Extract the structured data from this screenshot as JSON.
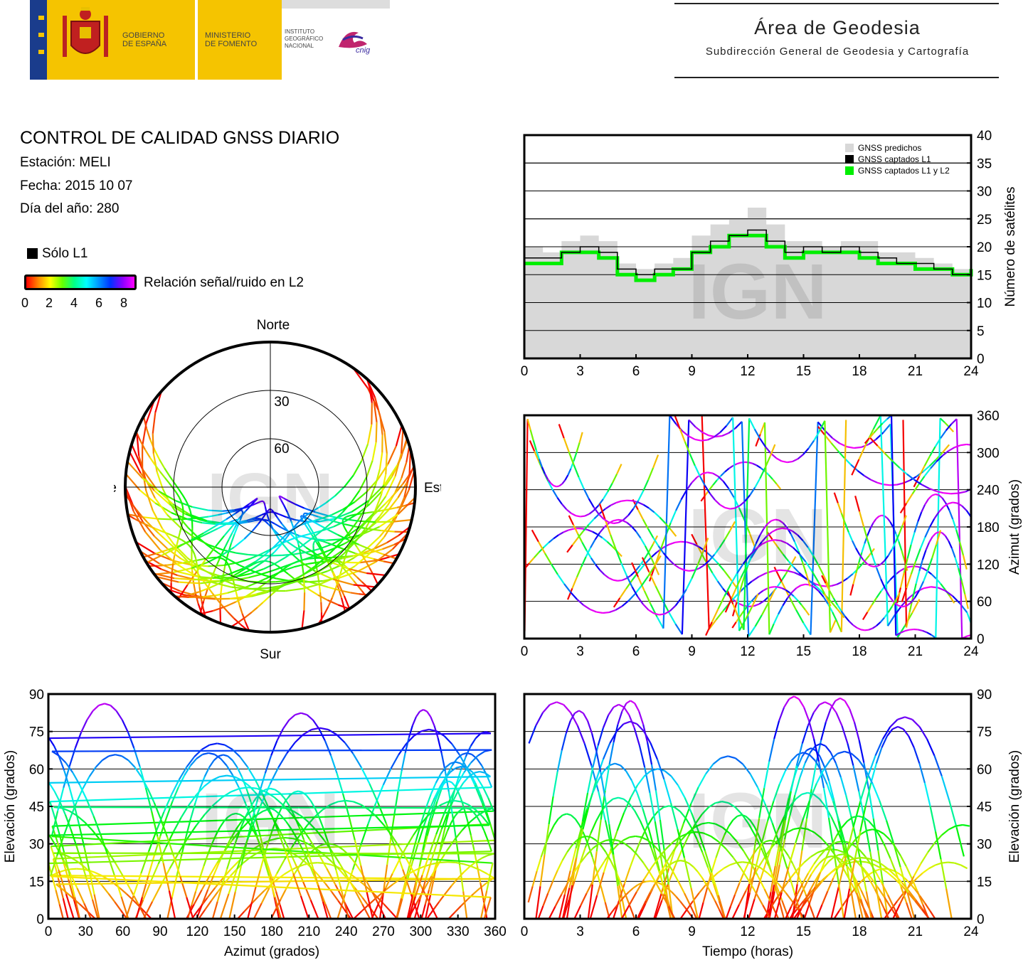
{
  "header": {
    "gov_line1": "GOBIERNO",
    "gov_line2": "DE ESPAÑA",
    "min_line1": "MINISTERIO",
    "min_line2": "DE FOMENTO",
    "ign_line1": "INSTITUTO",
    "ign_line2": "GEOGRÁFICO",
    "ign_line3": "NACIONAL",
    "cnig": "cnig",
    "area_title": "Área de Geodesia",
    "area_subtitle": "Subdirección General de Geodesia y Cartografía"
  },
  "report": {
    "title": "CONTROL DE CALIDAD GNSS DIARIO",
    "station": "Estación: MELI",
    "date": "Fecha: 2015 10 07",
    "doy": "Día del año: 280"
  },
  "legend": {
    "l1_only": "Sólo L1",
    "snr_label": "Relación señal/ruido en L2",
    "snr_ticks": [
      "0",
      "2",
      "4",
      "6",
      "8"
    ]
  },
  "watermark": "IGN",
  "colors": {
    "predicted": "#d8d8d8",
    "l1": "#000000",
    "l1l2": "#00ee00",
    "grid": "#000000"
  },
  "chart_data": [
    {
      "id": "satellite_count",
      "type": "area",
      "xlabel": "",
      "ylabel": "Número de satélites",
      "xlim": [
        0,
        24
      ],
      "ylim": [
        0,
        40
      ],
      "xticks": [
        "0",
        "3",
        "6",
        "9",
        "12",
        "15",
        "18",
        "21",
        "24"
      ],
      "yticks": [
        "0",
        "5",
        "10",
        "15",
        "20",
        "25",
        "30",
        "35",
        "40"
      ],
      "grid": true,
      "legend_placement": "top-right",
      "series": [
        {
          "name": "GNSS predichos",
          "x": [
            0,
            1,
            2,
            3,
            4,
            5,
            6,
            7,
            8,
            9,
            10,
            11,
            12,
            13,
            14,
            15,
            16,
            17,
            18,
            19,
            20,
            21,
            22,
            23,
            24
          ],
          "values": [
            20,
            19,
            21,
            22,
            21,
            17,
            16,
            17,
            18,
            22,
            24,
            25,
            27,
            24,
            21,
            21,
            20,
            21,
            21,
            19,
            19,
            18,
            17,
            16,
            18
          ]
        },
        {
          "name": "GNSS captados L1",
          "x": [
            0,
            1,
            2,
            3,
            4,
            5,
            6,
            7,
            8,
            9,
            10,
            11,
            12,
            13,
            14,
            15,
            16,
            17,
            18,
            19,
            20,
            21,
            22,
            23,
            24
          ],
          "values": [
            18,
            18,
            19,
            20,
            19,
            16,
            15,
            16,
            16,
            19,
            21,
            22,
            23,
            21,
            19,
            20,
            19,
            20,
            19,
            18,
            17,
            17,
            16,
            15,
            17
          ]
        },
        {
          "name": "GNSS captados L1 y L2",
          "x": [
            0,
            1,
            2,
            3,
            4,
            5,
            6,
            7,
            8,
            9,
            10,
            11,
            12,
            13,
            14,
            15,
            16,
            17,
            18,
            19,
            20,
            21,
            22,
            23,
            24
          ],
          "values": [
            17,
            17,
            19,
            19,
            18,
            15,
            14,
            15,
            16,
            19,
            20,
            22,
            22,
            20,
            18,
            19,
            19,
            19,
            18,
            17,
            17,
            16,
            16,
            15,
            16
          ]
        }
      ]
    },
    {
      "id": "azimuth_time",
      "type": "scatter",
      "xlabel": "",
      "ylabel": "Azimut (grados)",
      "xlim": [
        0,
        24
      ],
      "ylim": [
        0,
        360
      ],
      "xticks": [
        "0",
        "3",
        "6",
        "9",
        "12",
        "15",
        "18",
        "21",
        "24"
      ],
      "yticks": [
        "0",
        "60",
        "120",
        "180",
        "240",
        "300",
        "360"
      ],
      "grid": true
    },
    {
      "id": "elevation_azimuth",
      "type": "scatter",
      "xlabel": "Azimut (grados)",
      "ylabel": "Elevación (grados)",
      "xlim": [
        0,
        360
      ],
      "ylim": [
        0,
        90
      ],
      "xticks": [
        "0",
        "30",
        "60",
        "90",
        "120",
        "150",
        "180",
        "210",
        "240",
        "270",
        "300",
        "330",
        "360"
      ],
      "yticks": [
        "0",
        "15",
        "30",
        "45",
        "60",
        "75",
        "90"
      ],
      "grid": true
    },
    {
      "id": "elevation_time",
      "type": "scatter",
      "xlabel": "Tiempo (horas)",
      "ylabel": "Elevación (grados)",
      "xlim": [
        0,
        24
      ],
      "ylim": [
        0,
        90
      ],
      "xticks": [
        "0",
        "3",
        "6",
        "9",
        "12",
        "15",
        "18",
        "21",
        "24"
      ],
      "yticks": [
        "0",
        "15",
        "30",
        "45",
        "60",
        "75",
        "90"
      ],
      "grid": true
    },
    {
      "id": "skyplot",
      "type": "scatter",
      "directions": {
        "north": "Norte",
        "south": "Sur",
        "east": "Este",
        "west": "Oeste"
      },
      "ring_labels": [
        "30",
        "60"
      ],
      "grid": true
    }
  ]
}
